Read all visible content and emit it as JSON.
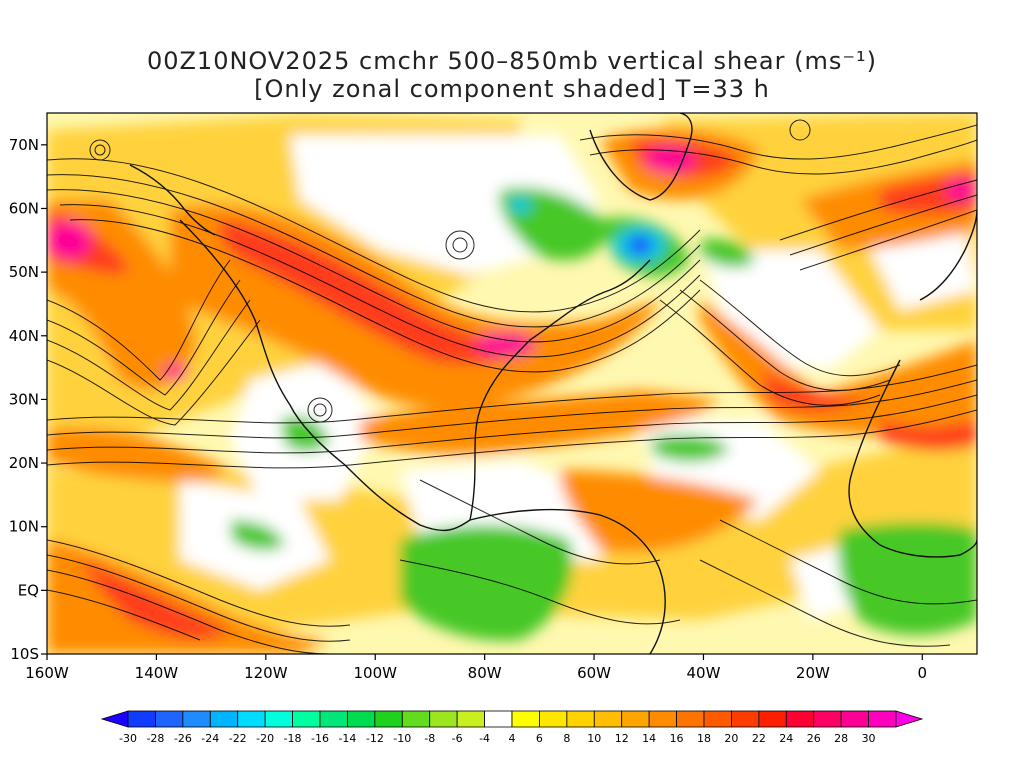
{
  "title": {
    "line1": "00Z10NOV2025 cmchr 500–850mb vertical shear (ms⁻¹)",
    "line2": "[Only zonal component shaded] T=33 h"
  },
  "map": {
    "lon_range": [
      -160,
      10
    ],
    "lat_range": [
      -10,
      75
    ],
    "lon_ticks": [
      {
        "lon": -160,
        "label": "160W"
      },
      {
        "lon": -140,
        "label": "140W"
      },
      {
        "lon": -120,
        "label": "120W"
      },
      {
        "lon": -100,
        "label": "100W"
      },
      {
        "lon": -80,
        "label": "80W"
      },
      {
        "lon": -60,
        "label": "60W"
      },
      {
        "lon": -40,
        "label": "40W"
      },
      {
        "lon": -20,
        "label": "20W"
      },
      {
        "lon": 0,
        "label": "0"
      }
    ],
    "lat_ticks": [
      {
        "lat": 70,
        "label": "70N"
      },
      {
        "lat": 60,
        "label": "60N"
      },
      {
        "lat": 50,
        "label": "50N"
      },
      {
        "lat": 40,
        "label": "40N"
      },
      {
        "lat": 30,
        "label": "30N"
      },
      {
        "lat": 20,
        "label": "20N"
      },
      {
        "lat": 10,
        "label": "10N"
      },
      {
        "lat": 0,
        "label": "EQ"
      },
      {
        "lat": -10,
        "label": "10S"
      }
    ]
  },
  "colorbar": {
    "colors": [
      "#1e00ff",
      "#0f3cff",
      "#1e64ff",
      "#1e8cff",
      "#00b4ff",
      "#00dcff",
      "#00ffdc",
      "#00ffa0",
      "#00e678",
      "#00dc50",
      "#1ed21e",
      "#64dc1e",
      "#9be61e",
      "#c8f01e",
      "#ffffff",
      "#ffff00",
      "#ffe600",
      "#ffd200",
      "#ffbe00",
      "#ffa500",
      "#ff8c00",
      "#ff7300",
      "#ff5a00",
      "#ff3c00",
      "#ff1e00",
      "#ff0032",
      "#ff0064",
      "#ff0096",
      "#ff00be",
      "#ff00e6"
    ],
    "labels": [
      "-30",
      "-28",
      "-26",
      "-24",
      "-22",
      "-20",
      "-18",
      "-16",
      "-14",
      "-12",
      "-10",
      "-8",
      "-6",
      "-4",
      "4",
      "6",
      "8",
      "10",
      "12",
      "14",
      "16",
      "18",
      "20",
      "22",
      "24",
      "26",
      "28",
      "30"
    ]
  }
}
